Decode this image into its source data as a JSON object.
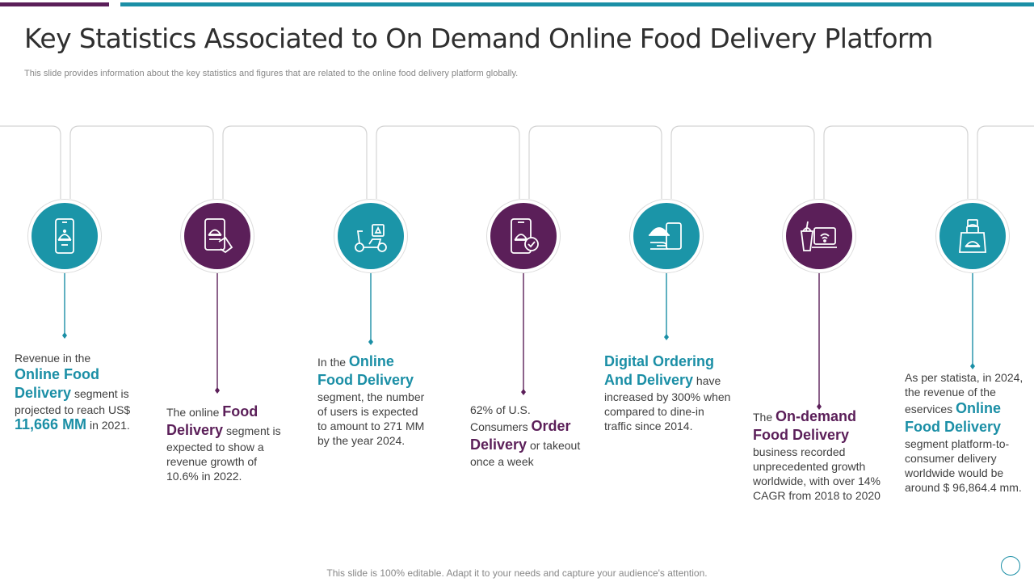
{
  "header": {
    "title": "Key Statistics Associated to On Demand Online Food Delivery Platform",
    "subtitle": "This slide provides information about the key statistics and figures that are related to the online food delivery platform globally."
  },
  "colors": {
    "teal": "#1b8fa6",
    "purple": "#5b1f59"
  },
  "items": [
    {
      "icon": "mobile-food-icon",
      "color": "teal",
      "pre": "Revenue in the",
      "highlight": "Online Food Delivery",
      "mid": " segment is projected to reach US$",
      "big": "11,666 MM",
      "post": " in 2021."
    },
    {
      "icon": "tablet-order-icon",
      "color": "purple",
      "pre": "The online ",
      "highlight": "Food Delivery",
      "post": " segment is expected to show a revenue growth of 10.6% in 2022."
    },
    {
      "icon": "delivery-scooter-icon",
      "color": "teal",
      "pre": "In the ",
      "highlight": "Online Food Delivery",
      "post": " segment, the number of users is expected to amount to 271 MM by the year 2024."
    },
    {
      "icon": "phone-check-icon",
      "color": "purple",
      "pre": "62% of U.S. Consumers ",
      "highlight": "Order Delivery",
      "post": " or takeout once a week"
    },
    {
      "icon": "digital-ordering-icon",
      "color": "teal",
      "highlight": "Digital Ordering And Delivery",
      "post": " have increased by 300% when compared to dine-in traffic since 2014."
    },
    {
      "icon": "drink-laptop-icon",
      "color": "purple",
      "pre": "The ",
      "highlight": "On-demand Food Delivery",
      "post": " business recorded unprecedented growth worldwide, with over 14% CAGR from 2018 to 2020"
    },
    {
      "icon": "food-bag-icon",
      "color": "teal",
      "pre": "As per statista, in 2024, the revenue of the eservices ",
      "highlight": "Online Food Delivery",
      "post": " segment platform-to-consumer delivery worldwide would be around $ 96,864.4 mm."
    }
  ],
  "footer": {
    "text": "This slide is 100% editable. Adapt it to your needs and capture your audience's attention."
  }
}
